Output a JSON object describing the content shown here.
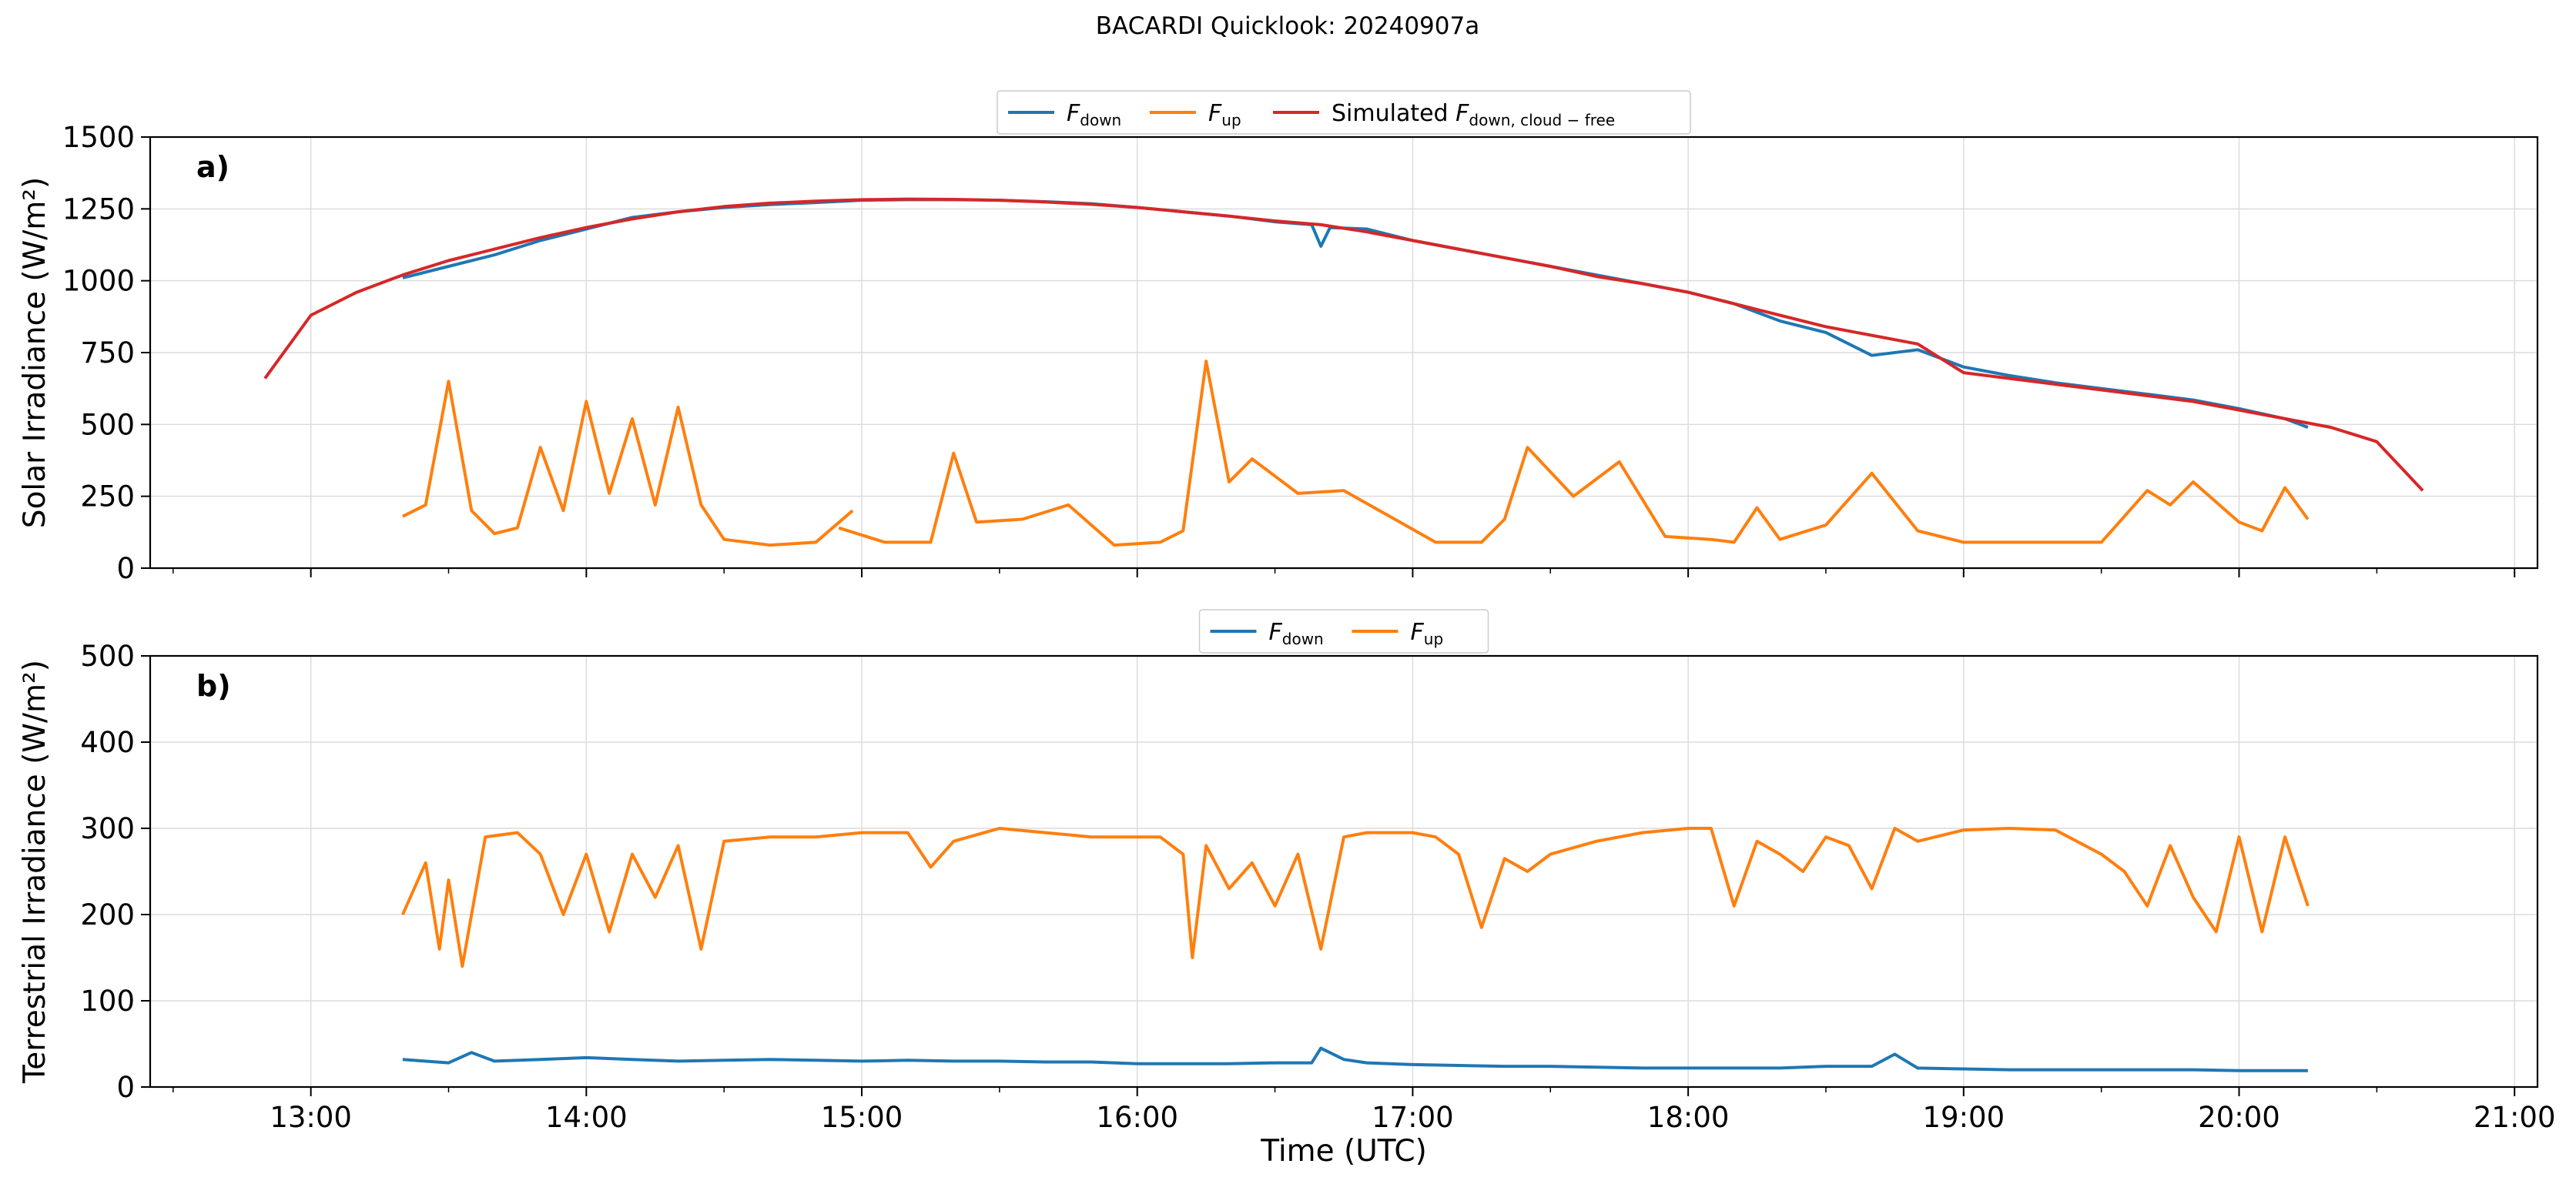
{
  "figure": {
    "suptitle": "BACARDI Quicklook: 20240907a",
    "xlabel": "Time (UTC)",
    "x_tick_labels": [
      "13:00",
      "14:00",
      "15:00",
      "16:00",
      "17:00",
      "18:00",
      "19:00",
      "20:00",
      "21:00"
    ]
  },
  "colors": {
    "fdown": "#1f77b4",
    "fup": "#ff7f0e",
    "sim": "#d62728",
    "grid": "#dcdcdc"
  },
  "chart_data": [
    {
      "type": "line",
      "panel_label": "a)",
      "ylabel": "Solar Irradiance (W/m²)",
      "ylim": [
        0,
        1500
      ],
      "xlim": [
        "12:25",
        "21:05"
      ],
      "yticks": [
        0,
        250,
        500,
        750,
        1000,
        1250,
        1500
      ],
      "grid": true,
      "legend": {
        "placement": "top-center",
        "entries": [
          {
            "prefix": "",
            "main": "F",
            "sub": "down"
          },
          {
            "prefix": "",
            "main": "F",
            "sub": "up"
          },
          {
            "prefix": "Simulated ",
            "main": "F",
            "sub": "down, cloud − free"
          }
        ]
      },
      "series": [
        {
          "key": "fdown",
          "color": "#1f77b4",
          "x": [
            "13:20",
            "13:30",
            "13:40",
            "13:50",
            "14:00",
            "14:10",
            "14:20",
            "14:30",
            "14:40",
            "14:50",
            "15:00",
            "15:10",
            "15:20",
            "15:30",
            "15:40",
            "15:50",
            "16:00",
            "16:10",
            "16:20",
            "16:30",
            "16:38",
            "16:40",
            "16:42",
            "16:50",
            "17:00",
            "17:10",
            "17:20",
            "17:30",
            "17:40",
            "17:50",
            "18:00",
            "18:10",
            "18:20",
            "18:30",
            "18:40",
            "18:50",
            "19:00",
            "19:10",
            "19:20",
            "19:30",
            "19:40",
            "19:50",
            "20:00",
            "20:10",
            "20:15"
          ],
          "y": [
            1010,
            1050,
            1090,
            1140,
            1180,
            1220,
            1240,
            1255,
            1265,
            1272,
            1280,
            1282,
            1282,
            1280,
            1275,
            1268,
            1255,
            1240,
            1225,
            1205,
            1195,
            1120,
            1185,
            1180,
            1140,
            1110,
            1080,
            1050,
            1020,
            990,
            960,
            920,
            860,
            820,
            740,
            760,
            700,
            670,
            645,
            625,
            605,
            585,
            555,
            520,
            490
          ]
        },
        {
          "key": "fup",
          "color": "#ff7f0e",
          "x": [
            "13:20",
            "13:25",
            "13:30",
            "13:35",
            "13:40",
            "13:45",
            "13:50",
            "13:55",
            "14:00",
            "14:05",
            "14:10",
            "14:15",
            "14:20",
            "14:25",
            "14:30",
            "14:40",
            "14:50",
            "14:58",
            null,
            "14:55",
            "15:05",
            "15:15",
            "15:20",
            "15:25",
            "15:35",
            "15:45",
            "15:55",
            "16:05",
            "16:10",
            "16:15",
            "16:20",
            "16:25",
            "16:35",
            "16:45",
            "16:55",
            "17:05",
            "17:15",
            "17:20",
            "17:25",
            "17:35",
            "17:45",
            "17:55",
            "18:05",
            "18:10",
            "18:15",
            "18:20",
            "18:30",
            "18:40",
            "18:50",
            "19:00",
            "19:10",
            "19:20",
            "19:30",
            "19:40",
            "19:45",
            "19:50",
            "20:00",
            "20:05",
            "20:10",
            "20:15"
          ],
          "y": [
            180,
            220,
            650,
            200,
            120,
            140,
            420,
            200,
            580,
            260,
            520,
            220,
            560,
            220,
            100,
            80,
            90,
            200,
            null,
            140,
            90,
            90,
            400,
            160,
            170,
            220,
            80,
            90,
            130,
            720,
            300,
            380,
            260,
            270,
            180,
            90,
            90,
            170,
            420,
            250,
            370,
            110,
            100,
            90,
            210,
            100,
            150,
            330,
            130,
            90,
            90,
            90,
            90,
            270,
            220,
            300,
            160,
            130,
            280,
            170
          ]
        },
        {
          "key": "sim",
          "color": "#d62728",
          "x": [
            "12:50",
            "13:00",
            "13:10",
            "13:20",
            "13:30",
            "13:40",
            "13:50",
            "14:00",
            "14:10",
            "14:20",
            "14:30",
            "14:40",
            "14:50",
            "15:00",
            "15:10",
            "15:20",
            "15:30",
            "15:40",
            "15:50",
            "16:00",
            "16:10",
            "16:20",
            "16:30",
            "16:40",
            "16:50",
            "17:00",
            "17:10",
            "17:20",
            "17:30",
            "17:40",
            "17:50",
            "18:00",
            "18:10",
            "18:20",
            "18:30",
            "18:40",
            "18:50",
            "19:00",
            "19:10",
            "19:20",
            "19:30",
            "19:40",
            "19:50",
            "20:00",
            "20:10",
            "20:20",
            "20:30",
            "20:40"
          ],
          "y": [
            660,
            880,
            960,
            1020,
            1070,
            1110,
            1150,
            1185,
            1215,
            1240,
            1258,
            1270,
            1277,
            1282,
            1284,
            1283,
            1280,
            1274,
            1266,
            1255,
            1240,
            1225,
            1208,
            1195,
            1170,
            1140,
            1110,
            1080,
            1050,
            1015,
            990,
            960,
            920,
            880,
            840,
            810,
            780,
            680,
            660,
            640,
            620,
            600,
            580,
            550,
            520,
            490,
            440,
            270
          ]
        }
      ]
    },
    {
      "type": "line",
      "panel_label": "b)",
      "ylabel": "Terrestrial Irradiance (W/m²)",
      "ylim": [
        0,
        500
      ],
      "xlim": [
        "12:25",
        "21:05"
      ],
      "yticks": [
        0,
        100,
        200,
        300,
        400,
        500
      ],
      "grid": true,
      "legend": {
        "placement": "top-center",
        "entries": [
          {
            "prefix": "",
            "main": "F",
            "sub": "down"
          },
          {
            "prefix": "",
            "main": "F",
            "sub": "up"
          }
        ]
      },
      "series": [
        {
          "key": "fdown",
          "color": "#1f77b4",
          "x": [
            "13:20",
            "13:30",
            "13:35",
            "13:40",
            "13:50",
            "14:00",
            "14:10",
            "14:20",
            "14:30",
            "14:40",
            "14:50",
            "15:00",
            "15:10",
            "15:20",
            "15:30",
            "15:40",
            "15:50",
            "16:00",
            "16:10",
            "16:20",
            "16:30",
            "16:38",
            "16:40",
            "16:45",
            "16:50",
            "17:00",
            "17:10",
            "17:20",
            "17:30",
            "17:40",
            "17:50",
            "18:00",
            "18:10",
            "18:20",
            "18:30",
            "18:40",
            "18:45",
            "18:50",
            "19:00",
            "19:10",
            "19:20",
            "19:30",
            "19:40",
            "19:50",
            "20:00",
            "20:10",
            "20:15"
          ],
          "y": [
            32,
            28,
            40,
            30,
            32,
            34,
            32,
            30,
            31,
            32,
            31,
            30,
            31,
            30,
            30,
            29,
            29,
            27,
            27,
            27,
            28,
            28,
            45,
            32,
            28,
            26,
            25,
            24,
            24,
            23,
            22,
            22,
            22,
            22,
            24,
            24,
            38,
            22,
            21,
            20,
            20,
            20,
            20,
            20,
            19,
            19,
            19
          ]
        },
        {
          "key": "fup",
          "color": "#ff7f0e",
          "x": [
            "13:20",
            "13:25",
            "13:28",
            "13:30",
            "13:33",
            "13:38",
            "13:45",
            "13:50",
            "13:55",
            "14:00",
            "14:05",
            "14:10",
            "14:15",
            "14:20",
            "14:25",
            "14:30",
            "14:40",
            "14:50",
            "15:00",
            "15:10",
            "15:15",
            "15:20",
            "15:30",
            "15:40",
            "15:50",
            "16:00",
            "16:05",
            "16:10",
            "16:12",
            "16:15",
            "16:20",
            "16:25",
            "16:30",
            "16:35",
            "16:40",
            "16:45",
            "16:50",
            "17:00",
            "17:05",
            "17:10",
            "17:15",
            "17:20",
            "17:25",
            "17:30",
            "17:40",
            "17:50",
            "18:00",
            "18:05",
            "18:10",
            "18:15",
            "18:20",
            "18:25",
            "18:30",
            "18:35",
            "18:40",
            "18:45",
            "18:50",
            "19:00",
            "19:10",
            "19:20",
            "19:30",
            "19:35",
            "19:40",
            "19:45",
            "19:50",
            "19:55",
            "20:00",
            "20:05",
            "20:10",
            "20:15"
          ],
          "y": [
            200,
            260,
            160,
            240,
            140,
            290,
            295,
            270,
            200,
            270,
            180,
            270,
            220,
            280,
            160,
            285,
            290,
            290,
            295,
            295,
            255,
            285,
            300,
            295,
            290,
            290,
            290,
            270,
            150,
            280,
            230,
            260,
            210,
            270,
            160,
            290,
            295,
            295,
            290,
            270,
            185,
            265,
            250,
            270,
            285,
            295,
            300,
            300,
            210,
            285,
            270,
            250,
            290,
            280,
            230,
            300,
            285,
            298,
            300,
            298,
            270,
            250,
            210,
            280,
            220,
            180,
            290,
            180,
            290,
            210
          ]
        }
      ]
    }
  ]
}
